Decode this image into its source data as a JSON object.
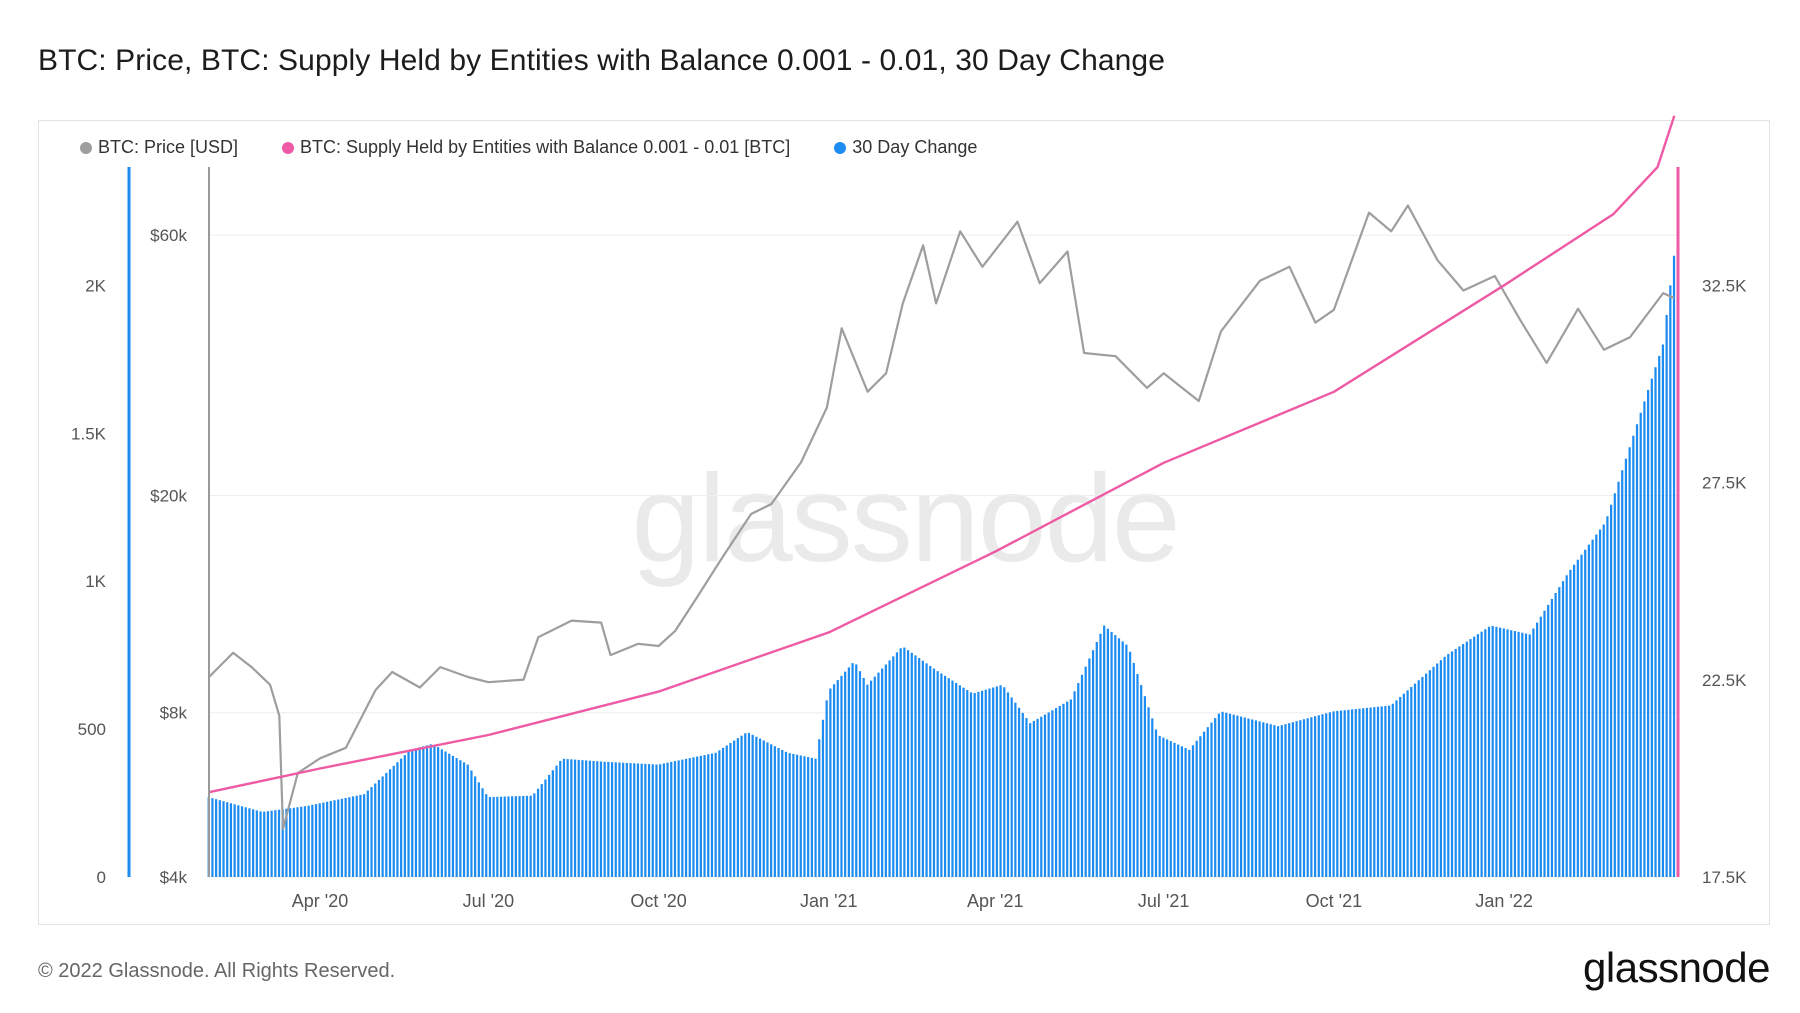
{
  "title": "BTC: Price, BTC: Supply Held by Entities with Balance 0.001 - 0.01, 30 Day Change",
  "footer": "© 2022 Glassnode. All Rights Reserved.",
  "brand": "glassnode",
  "watermark": "glassnode",
  "colors": {
    "price": "#9e9e9e",
    "supply": "#ee5aa4",
    "change": "#1c8cf2",
    "change_axis": "#1c8cf2",
    "supply_axis": "#ee5aa4",
    "price_axis": "#999999",
    "grid": "#eeeeee"
  },
  "legend": [
    {
      "label": "BTC: Price [USD]",
      "color": "#9e9e9e"
    },
    {
      "label": "BTC: Supply Held by Entities with Balance 0.001 - 0.01 [BTC]",
      "color": "#ee5aa4"
    },
    {
      "label": "30 Day Change",
      "color": "#1c8cf2"
    }
  ],
  "chart_data": {
    "type": "line",
    "x_range": [
      "2020-02-01",
      "2022-04-05"
    ],
    "x_ticks": [
      {
        "label": "Apr '20",
        "date": "2020-04-01"
      },
      {
        "label": "Jul '20",
        "date": "2020-07-01"
      },
      {
        "label": "Oct '20",
        "date": "2020-10-01"
      },
      {
        "label": "Jan '21",
        "date": "2021-01-01"
      },
      {
        "label": "Apr '21",
        "date": "2021-04-01"
      },
      {
        "label": "Jul '21",
        "date": "2021-07-01"
      },
      {
        "label": "Oct '21",
        "date": "2021-10-01"
      },
      {
        "label": "Jan '22",
        "date": "2022-01-01"
      }
    ],
    "axes": {
      "change": {
        "side": "left",
        "ticks": [
          0,
          500,
          1000,
          1500,
          2000
        ],
        "tick_labels": [
          "0",
          "500",
          "1K",
          "1.5K",
          "2K"
        ],
        "range": [
          0,
          2400
        ]
      },
      "price": {
        "side": "left-inner",
        "scale": "log",
        "ticks": [
          4000,
          8000,
          20000,
          60000
        ],
        "tick_labels": [
          "$4k",
          "$8k",
          "$20k",
          "$60k"
        ],
        "range": [
          4000,
          80000
        ]
      },
      "supply": {
        "side": "right",
        "ticks": [
          17500,
          22500,
          27500,
          32500
        ],
        "tick_labels": [
          "17.5K",
          "22.5K",
          "27.5K",
          "32.5K"
        ],
        "range": [
          17500,
          35500
        ]
      }
    },
    "series": [
      {
        "name": "BTC: Price [USD]",
        "type": "line",
        "axis": "price",
        "points": [
          [
            "2020-02-01",
            9300
          ],
          [
            "2020-02-14",
            10300
          ],
          [
            "2020-02-24",
            9700
          ],
          [
            "2020-03-05",
            9000
          ],
          [
            "2020-03-10",
            7900
          ],
          [
            "2020-03-12",
            4900
          ],
          [
            "2020-03-20",
            6200
          ],
          [
            "2020-04-01",
            6600
          ],
          [
            "2020-04-15",
            6900
          ],
          [
            "2020-05-01",
            8800
          ],
          [
            "2020-05-10",
            9500
          ],
          [
            "2020-05-25",
            8900
          ],
          [
            "2020-06-05",
            9700
          ],
          [
            "2020-06-20",
            9300
          ],
          [
            "2020-07-01",
            9100
          ],
          [
            "2020-07-20",
            9200
          ],
          [
            "2020-07-28",
            11000
          ],
          [
            "2020-08-15",
            11800
          ],
          [
            "2020-08-31",
            11700
          ],
          [
            "2020-09-05",
            10200
          ],
          [
            "2020-09-20",
            10700
          ],
          [
            "2020-10-01",
            10600
          ],
          [
            "2020-10-10",
            11300
          ],
          [
            "2020-10-21",
            12900
          ],
          [
            "2020-11-05",
            15500
          ],
          [
            "2020-11-20",
            18500
          ],
          [
            "2020-12-01",
            19300
          ],
          [
            "2020-12-17",
            23000
          ],
          [
            "2020-12-31",
            29000
          ],
          [
            "2021-01-08",
            40500
          ],
          [
            "2021-01-22",
            31000
          ],
          [
            "2021-02-01",
            33500
          ],
          [
            "2021-02-10",
            45000
          ],
          [
            "2021-02-21",
            57500
          ],
          [
            "2021-02-28",
            45000
          ],
          [
            "2021-03-13",
            61000
          ],
          [
            "2021-03-25",
            52500
          ],
          [
            "2021-04-13",
            63500
          ],
          [
            "2021-04-25",
            49000
          ],
          [
            "2021-05-10",
            56000
          ],
          [
            "2021-05-19",
            36500
          ],
          [
            "2021-06-05",
            36000
          ],
          [
            "2021-06-22",
            31500
          ],
          [
            "2021-07-01",
            33500
          ],
          [
            "2021-07-20",
            29800
          ],
          [
            "2021-08-01",
            40000
          ],
          [
            "2021-08-22",
            49500
          ],
          [
            "2021-09-07",
            52500
          ],
          [
            "2021-09-21",
            41500
          ],
          [
            "2021-10-01",
            43800
          ],
          [
            "2021-10-20",
            66000
          ],
          [
            "2021-11-01",
            61000
          ],
          [
            "2021-11-10",
            68000
          ],
          [
            "2021-11-26",
            54000
          ],
          [
            "2021-12-10",
            47500
          ],
          [
            "2021-12-27",
            50500
          ],
          [
            "2022-01-10",
            41800
          ],
          [
            "2022-01-24",
            35000
          ],
          [
            "2022-02-10",
            44000
          ],
          [
            "2022-02-24",
            37000
          ],
          [
            "2022-03-10",
            39000
          ],
          [
            "2022-03-28",
            47000
          ],
          [
            "2022-04-03",
            46000
          ]
        ]
      },
      {
        "name": "BTC: Supply Held by Entities with Balance 0.001 - 0.01 [BTC]",
        "type": "line",
        "axis": "supply",
        "points": [
          [
            "2020-02-01",
            19650
          ],
          [
            "2020-04-01",
            20250
          ],
          [
            "2020-07-01",
            21100
          ],
          [
            "2020-10-01",
            22200
          ],
          [
            "2021-01-01",
            23700
          ],
          [
            "2021-04-01",
            25750
          ],
          [
            "2021-07-01",
            28000
          ],
          [
            "2021-10-01",
            29800
          ],
          [
            "2022-01-01",
            32500
          ],
          [
            "2022-03-01",
            34300
          ],
          [
            "2022-03-25",
            35500
          ],
          [
            "2022-04-03",
            36800
          ]
        ]
      },
      {
        "name": "30 Day Change",
        "type": "bar",
        "axis": "change",
        "points": [
          [
            "2020-02-01",
            270
          ],
          [
            "2020-03-01",
            220
          ],
          [
            "2020-03-25",
            240
          ],
          [
            "2020-04-25",
            280
          ],
          [
            "2020-05-20",
            430
          ],
          [
            "2020-06-01",
            450
          ],
          [
            "2020-06-20",
            380
          ],
          [
            "2020-07-01",
            270
          ],
          [
            "2020-07-25",
            275
          ],
          [
            "2020-08-10",
            400
          ],
          [
            "2020-09-01",
            390
          ],
          [
            "2020-10-01",
            380
          ],
          [
            "2020-11-01",
            420
          ],
          [
            "2020-11-18",
            490
          ],
          [
            "2020-12-10",
            420
          ],
          [
            "2020-12-25",
            400
          ],
          [
            "2021-01-01",
            630
          ],
          [
            "2021-01-15",
            730
          ],
          [
            "2021-01-22",
            650
          ],
          [
            "2021-02-10",
            780
          ],
          [
            "2021-02-28",
            700
          ],
          [
            "2021-03-20",
            620
          ],
          [
            "2021-04-05",
            650
          ],
          [
            "2021-04-20",
            520
          ],
          [
            "2021-05-12",
            600
          ],
          [
            "2021-05-30",
            850
          ],
          [
            "2021-06-12",
            780
          ],
          [
            "2021-06-28",
            480
          ],
          [
            "2021-07-15",
            430
          ],
          [
            "2021-08-01",
            560
          ],
          [
            "2021-09-01",
            510
          ],
          [
            "2021-10-01",
            560
          ],
          [
            "2021-11-01",
            580
          ],
          [
            "2021-12-01",
            750
          ],
          [
            "2021-12-25",
            850
          ],
          [
            "2022-01-15",
            820
          ],
          [
            "2022-02-05",
            1030
          ],
          [
            "2022-02-25",
            1200
          ],
          [
            "2022-03-15",
            1550
          ],
          [
            "2022-03-28",
            1800
          ],
          [
            "2022-04-03",
            2100
          ]
        ]
      }
    ]
  }
}
